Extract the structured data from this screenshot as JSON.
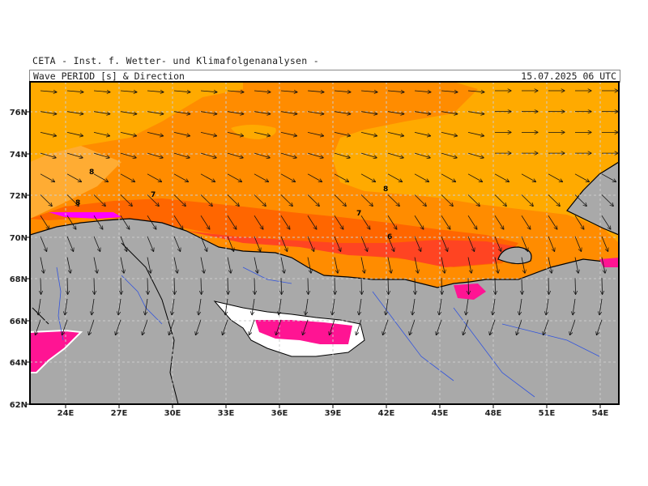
{
  "header": {
    "organization": "CETA - Inst. f. Wetter- und Klimafolgenanalysen -",
    "title": "Wave PERIOD [s] & Direction",
    "valid_time": "15.07.2025 06 UTC"
  },
  "map": {
    "variable": "wave period",
    "unit": "s",
    "lat_ticks": [
      "76N",
      "74N",
      "72N",
      "70N",
      "68N",
      "66N",
      "64N",
      "62N"
    ],
    "lon_ticks": [
      "24E",
      "27E",
      "30E",
      "33E",
      "36E",
      "39E",
      "42E",
      "45E",
      "48E",
      "51E",
      "54E"
    ],
    "contour_labels": [
      {
        "text": "8"
      },
      {
        "text": "8"
      },
      {
        "text": "7"
      },
      {
        "text": "8"
      },
      {
        "text": "7"
      },
      {
        "text": "6"
      }
    ],
    "colors": {
      "period_8_plus": "#ffaa00",
      "period_7_8": "#ff8c00",
      "period_6_7": "#ff6600",
      "period_5_6": "#ff4422",
      "period_low": "#ff1493",
      "period_lowest": "#ff00ff",
      "land": "#a9a9a9",
      "rivers": "#3355dd",
      "borders": "#000000",
      "grid": "#cccccc"
    }
  }
}
